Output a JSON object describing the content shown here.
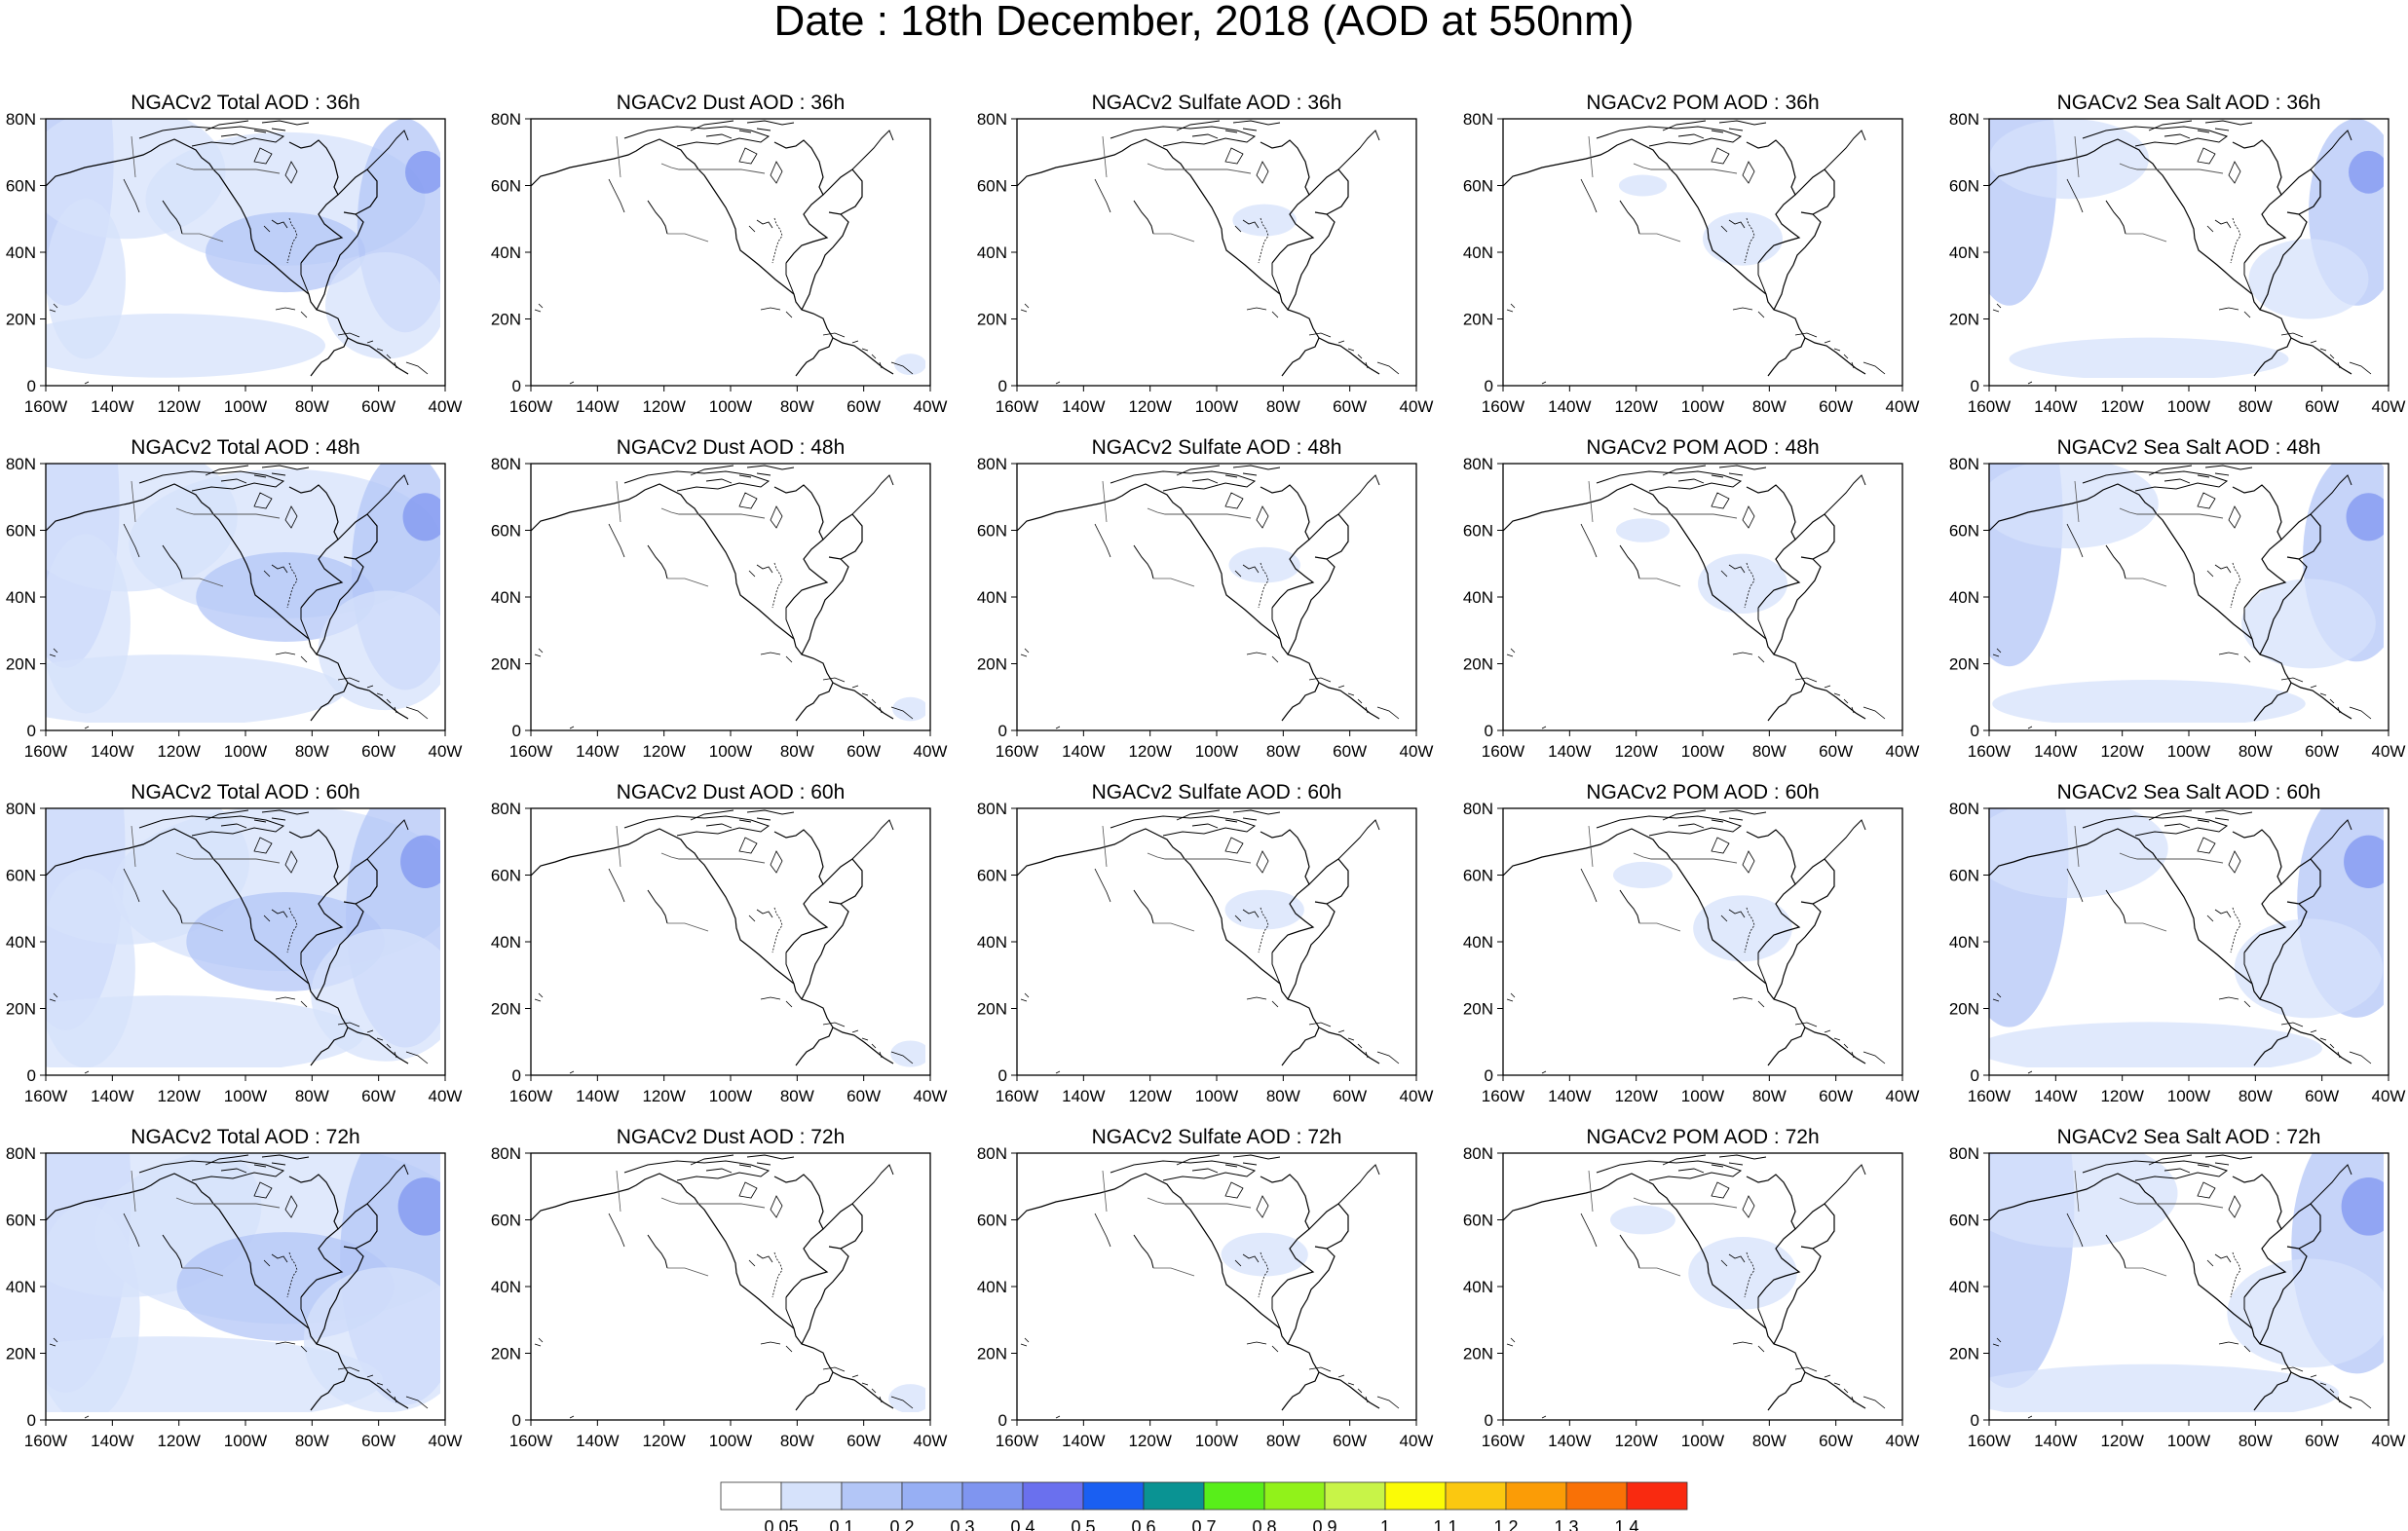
{
  "title": "Date : 18th December, 2018 (AOD at 550nm)",
  "axes": {
    "lat_ticks": [
      "80N",
      "60N",
      "40N",
      "20N",
      "0"
    ],
    "lon_ticks": [
      "160W",
      "140W",
      "120W",
      "100W",
      "80W",
      "60W",
      "40W"
    ],
    "lon_range": [
      -160,
      -40
    ],
    "lat_range": [
      0,
      80
    ]
  },
  "panels": [
    [
      "NGACv2 Total AOD : 36h",
      "NGACv2 Dust AOD : 36h",
      "NGACv2 Sulfate AOD : 36h",
      "NGACv2 POM AOD : 36h",
      "NGACv2 Sea Salt AOD : 36h"
    ],
    [
      "NGACv2 Total AOD : 48h",
      "NGACv2 Dust AOD : 48h",
      "NGACv2 Sulfate AOD : 48h",
      "NGACv2 POM AOD : 48h",
      "NGACv2 Sea Salt AOD : 48h"
    ],
    [
      "NGACv2 Total AOD : 60h",
      "NGACv2 Dust AOD : 60h",
      "NGACv2 Sulfate AOD : 60h",
      "NGACv2 POM AOD : 60h",
      "NGACv2 Sea Salt AOD : 60h"
    ],
    [
      "NGACv2 Total AOD : 72h",
      "NGACv2 Dust AOD : 72h",
      "NGACv2 Sulfate AOD : 72h",
      "NGACv2 POM AOD : 72h",
      "NGACv2 Sea Salt  AOD : 72h"
    ]
  ],
  "colorbar": {
    "labels": [
      "0.05",
      "0.1",
      "0.2",
      "0.3",
      "0.4",
      "0.5",
      "0.6",
      "0.7",
      "0.8",
      "0.9",
      "1",
      "1.1",
      "1.2",
      "1.3",
      "1.4"
    ],
    "colors": [
      "#ffffff",
      "#d6e2fb",
      "#b3c6f7",
      "#97aff4",
      "#7f95f0",
      "#6a70ee",
      "#1a5ff2",
      "#0a9393",
      "#58ee1a",
      "#91f21a",
      "#c8f448",
      "#fbfb06",
      "#fbc810",
      "#fb9c06",
      "#f97106",
      "#f92a10"
    ]
  }
}
